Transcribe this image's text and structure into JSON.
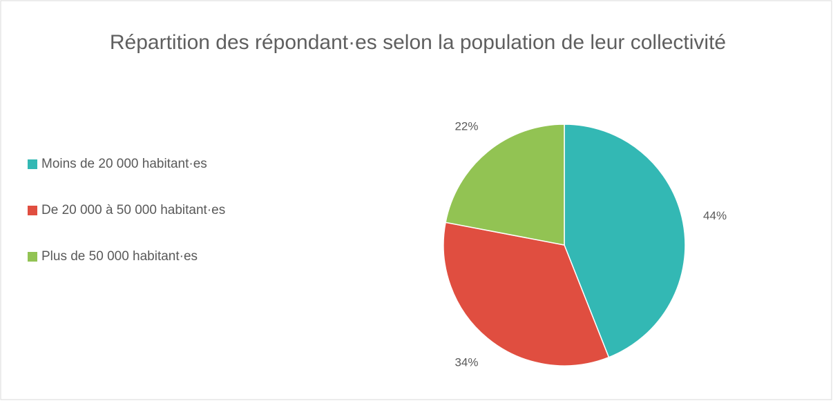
{
  "chart_data": {
    "type": "pie",
    "title": "Répartition des répondant·es selon la population de leur collectivité",
    "categories": [
      "Moins de 20 000 habitant·es",
      "De 20 000 à 50 000 habitant·es",
      "Plus de 50 000 habitant·es"
    ],
    "values": [
      44,
      34,
      22
    ],
    "value_labels": [
      "44%",
      "34%",
      "22%"
    ],
    "colors": [
      "#33b8b4",
      "#e04e40",
      "#92c353"
    ],
    "legend": "left"
  }
}
